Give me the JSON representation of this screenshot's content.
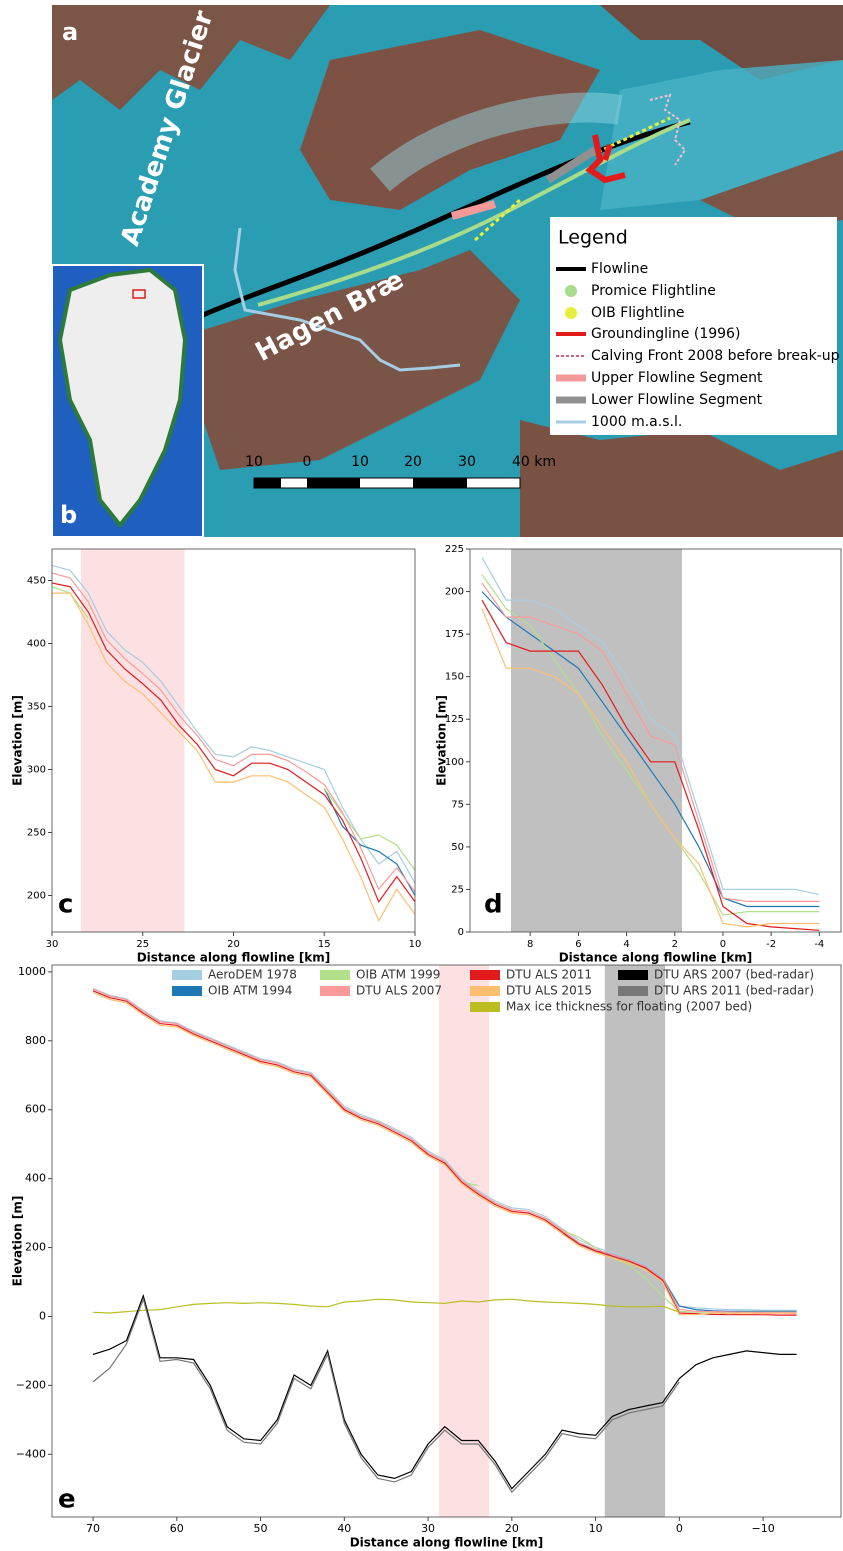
{
  "map": {
    "panel_label": "a",
    "inset_label": "b",
    "labels": [
      "Academy Glacier",
      "Hagen Bræ"
    ],
    "legend": {
      "title": "Legend",
      "items": [
        "Flowline",
        "Promice Flightline",
        "OIB Flightline",
        "Groundingline (1996)",
        "Calving Front 2008 before break-up",
        "Upper Flowline Segment",
        "Lower Flowline Segment",
        "1000 m.a.s.l."
      ]
    },
    "scale": [
      "10",
      "0",
      "10",
      "20",
      "30",
      "40 km"
    ]
  },
  "chart_data": [
    {
      "type": "line",
      "panel_label": "c",
      "xlabel": "Distance along flowline [km]",
      "ylabel": "Elevation [m]",
      "x": [
        30,
        29,
        28,
        27,
        26,
        25,
        24,
        23,
        22,
        21,
        20,
        19,
        18,
        17,
        16,
        15,
        14,
        13,
        12,
        11,
        10
      ],
      "xlim": [
        30,
        10
      ],
      "ylim": [
        171,
        475
      ],
      "xticks": [
        30,
        25,
        20,
        15,
        10
      ],
      "yticks": [
        200,
        250,
        300,
        350,
        400,
        450
      ],
      "spans": [
        {
          "x0": 28.4,
          "x1": 22.7,
          "color": "#fde0e2"
        }
      ],
      "series": [
        {
          "color": "#a6cee3",
          "values": [
            462,
            458,
            440,
            410,
            395,
            385,
            370,
            350,
            330,
            312,
            310,
            318,
            315,
            310,
            305,
            300,
            270,
            245,
            225,
            235,
            210
          ]
        },
        {
          "color": "#1f78b4",
          "values": [
            null,
            null,
            null,
            null,
            null,
            null,
            null,
            null,
            null,
            null,
            null,
            null,
            null,
            null,
            null,
            285,
            255,
            240,
            235,
            225,
            200
          ]
        },
        {
          "color": "#b2df8a",
          "values": [
            445,
            440,
            420,
            null,
            null,
            null,
            null,
            null,
            null,
            null,
            null,
            null,
            null,
            null,
            null,
            285,
            265,
            245,
            248,
            240,
            220
          ]
        },
        {
          "color": "#fb9a99",
          "values": [
            456,
            452,
            433,
            403,
            388,
            376,
            363,
            343,
            327,
            308,
            303,
            312,
            312,
            307,
            298,
            288,
            266,
            238,
            205,
            222,
            203
          ]
        },
        {
          "color": "#e31a1c",
          "values": [
            448,
            445,
            425,
            395,
            380,
            368,
            355,
            335,
            320,
            300,
            295,
            305,
            305,
            300,
            290,
            280,
            260,
            230,
            195,
            215,
            195
          ]
        },
        {
          "color": "#fdbf6f",
          "values": [
            440,
            440,
            415,
            385,
            370,
            360,
            345,
            330,
            315,
            290,
            290,
            295,
            295,
            290,
            280,
            270,
            245,
            215,
            180,
            205,
            185
          ]
        }
      ]
    },
    {
      "type": "line",
      "panel_label": "d",
      "xlabel": "Distance along flowline [km]",
      "ylabel": "Elevation [m]",
      "x": [
        10,
        9,
        8,
        7,
        6,
        5,
        4,
        3,
        2,
        1,
        0,
        -1,
        -2,
        -3,
        -4
      ],
      "xlim": [
        10.5,
        -4.9
      ],
      "ylim": [
        0,
        225
      ],
      "xticks": [
        8,
        6,
        4,
        2,
        0,
        -2,
        -4
      ],
      "yticks": [
        0,
        25,
        50,
        75,
        100,
        125,
        150,
        175,
        200,
        225
      ],
      "spans": [
        {
          "x0": 8.8,
          "x1": 1.7,
          "color": "#c0c0c0"
        }
      ],
      "series": [
        {
          "color": "#a6cee3",
          "values": [
            220,
            195,
            195,
            190,
            180,
            170,
            150,
            125,
            115,
            70,
            25,
            25,
            25,
            25,
            22
          ]
        },
        {
          "color": "#1f78b4",
          "values": [
            200,
            185,
            175,
            165,
            155,
            135,
            115,
            95,
            75,
            50,
            20,
            15,
            15,
            15,
            15
          ]
        },
        {
          "color": "#b2df8a",
          "values": [
            210,
            190,
            180,
            160,
            140,
            115,
            95,
            75,
            55,
            35,
            10,
            12,
            12,
            12,
            12
          ]
        },
        {
          "color": "#fb9a99",
          "values": [
            205,
            185,
            185,
            180,
            175,
            165,
            140,
            115,
            110,
            65,
            20,
            18,
            18,
            18,
            18
          ]
        },
        {
          "color": "#e31a1c",
          "values": [
            195,
            170,
            165,
            165,
            165,
            145,
            120,
            100,
            100,
            60,
            15,
            5,
            3,
            2,
            1
          ]
        },
        {
          "color": "#fdbf6f",
          "values": [
            190,
            155,
            155,
            150,
            140,
            120,
            100,
            75,
            55,
            40,
            5,
            3,
            5,
            5,
            5
          ]
        }
      ]
    },
    {
      "type": "line",
      "panel_label": "e",
      "xlabel": "Distance along flowline [km]",
      "ylabel": "Elevation [m]",
      "x": [
        70,
        68,
        66,
        64,
        62,
        60,
        58,
        56,
        54,
        52,
        50,
        48,
        46,
        44,
        42,
        40,
        38,
        36,
        34,
        32,
        30,
        28,
        26,
        24,
        22,
        20,
        18,
        16,
        14,
        12,
        10,
        8,
        6,
        4,
        2,
        0,
        -2,
        -4,
        -6,
        -8,
        -10,
        -12,
        -14
      ],
      "xlim": [
        74.9,
        -19.3
      ],
      "ylim": [
        -582,
        1020
      ],
      "xticks": [
        70,
        60,
        50,
        40,
        30,
        20,
        10,
        0,
        {
          "value": -10,
          "label": "−10"
        }
      ],
      "yticks": [
        {
          "value": -400,
          "label": "−400"
        },
        {
          "value": -200,
          "label": "−200"
        },
        0,
        200,
        400,
        600,
        800,
        1000
      ],
      "spans": [
        {
          "x0": 28.7,
          "x1": 22.7,
          "color": "#fde0e2"
        },
        {
          "x0": 8.9,
          "x1": 1.7,
          "color": "#c0c0c0"
        }
      ],
      "series": [
        {
          "name": "AeroDEM 1978",
          "color": "#a6cee3",
          "values": [
            952,
            932,
            922,
            888,
            858,
            852,
            828,
            808,
            788,
            768,
            748,
            738,
            718,
            708,
            660,
            610,
            585,
            568,
            545,
            520,
            480,
            455,
            400,
            365,
            335,
            315,
            310,
            290,
            255,
            222,
            200,
            185,
            170,
            150,
            115,
            30,
            25,
            22,
            20,
            20,
            18,
            18,
            18
          ]
        },
        {
          "name": "OIB ATM 1994",
          "color": "#1f78b4",
          "values": [
            null,
            null,
            null,
            null,
            null,
            null,
            null,
            null,
            null,
            null,
            null,
            null,
            null,
            null,
            null,
            null,
            null,
            null,
            null,
            null,
            null,
            null,
            null,
            null,
            null,
            null,
            null,
            null,
            240,
            215,
            190,
            180,
            165,
            145,
            110,
            30,
            20,
            16,
            15,
            15,
            15,
            15,
            15
          ]
        },
        {
          "name": "OIB ATM 1999",
          "color": "#b2df8a",
          "values": [
            null,
            null,
            null,
            null,
            null,
            null,
            null,
            null,
            null,
            null,
            null,
            null,
            null,
            null,
            null,
            null,
            null,
            null,
            null,
            null,
            null,
            null,
            390,
            380,
            null,
            null,
            null,
            285,
            250,
            230,
            200,
            170,
            150,
            110,
            60,
            15,
            12,
            12,
            12,
            12,
            12,
            12,
            12
          ]
        },
        {
          "name": "DTU ALS 2007",
          "color": "#fb9a99",
          "values": [
            950,
            930,
            920,
            885,
            855,
            850,
            825,
            805,
            785,
            765,
            745,
            735,
            715,
            705,
            655,
            605,
            580,
            565,
            540,
            515,
            475,
            450,
            395,
            360,
            330,
            310,
            305,
            285,
            250,
            215,
            195,
            180,
            165,
            145,
            110,
            20,
            15,
            14,
            13,
            12,
            12,
            12,
            12
          ]
        },
        {
          "name": "DTU ALS 2011",
          "color": "#e31a1c",
          "values": [
            945,
            925,
            915,
            880,
            850,
            845,
            820,
            800,
            780,
            760,
            740,
            730,
            710,
            700,
            650,
            600,
            575,
            560,
            535,
            510,
            470,
            445,
            390,
            355,
            325,
            305,
            300,
            280,
            245,
            210,
            190,
            175,
            160,
            140,
            105,
            10,
            8,
            6,
            5,
            5,
            5,
            4,
            4
          ]
        },
        {
          "name": "DTU ALS 2015",
          "color": "#fdbf6f",
          "values": [
            940,
            920,
            910,
            875,
            845,
            840,
            815,
            795,
            775,
            755,
            735,
            725,
            705,
            695,
            645,
            595,
            570,
            555,
            530,
            505,
            465,
            440,
            385,
            350,
            320,
            300,
            295,
            275,
            240,
            205,
            185,
            170,
            155,
            135,
            100,
            5,
            5,
            10,
            8,
            10,
            8,
            10,
            8
          ]
        },
        {
          "name": "Max ice thickness for floating (2007 bed)",
          "color": "#bcbd22",
          "values": [
            12,
            10,
            14,
            18,
            20,
            28,
            35,
            38,
            40,
            38,
            40,
            38,
            35,
            30,
            28,
            42,
            45,
            50,
            48,
            42,
            40,
            38,
            45,
            42,
            48,
            50,
            45,
            42,
            40,
            38,
            35,
            30,
            28,
            28,
            30,
            12,
            null,
            null,
            null,
            null,
            null,
            null,
            null
          ]
        },
        {
          "name": "DTU ARS 2007 (bed-radar)",
          "color": "#000000",
          "values": [
            -110,
            -95,
            -70,
            60,
            -120,
            -120,
            -125,
            -200,
            -320,
            -355,
            -360,
            -300,
            -170,
            -200,
            -100,
            -300,
            -400,
            -460,
            -470,
            -450,
            -370,
            -320,
            -360,
            -360,
            -420,
            -500,
            -450,
            -400,
            -330,
            -340,
            -345,
            -290,
            -270,
            -260,
            -250,
            -180,
            -140,
            -120,
            -110,
            -100,
            -105,
            -110,
            -110
          ]
        },
        {
          "name": "DTU ARS 2011 (bed-radar)",
          "color": "#777777",
          "values": [
            -190,
            -150,
            -80,
            50,
            -130,
            -125,
            -135,
            -210,
            -330,
            -365,
            -370,
            -310,
            -180,
            -210,
            -110,
            -310,
            -410,
            -470,
            -480,
            -460,
            -380,
            -330,
            -370,
            -370,
            -430,
            -510,
            -460,
            -410,
            -340,
            -350,
            -355,
            -300,
            -280,
            -270,
            -260,
            -190,
            null,
            null,
            null,
            null,
            null,
            null,
            null
          ]
        }
      ]
    }
  ]
}
